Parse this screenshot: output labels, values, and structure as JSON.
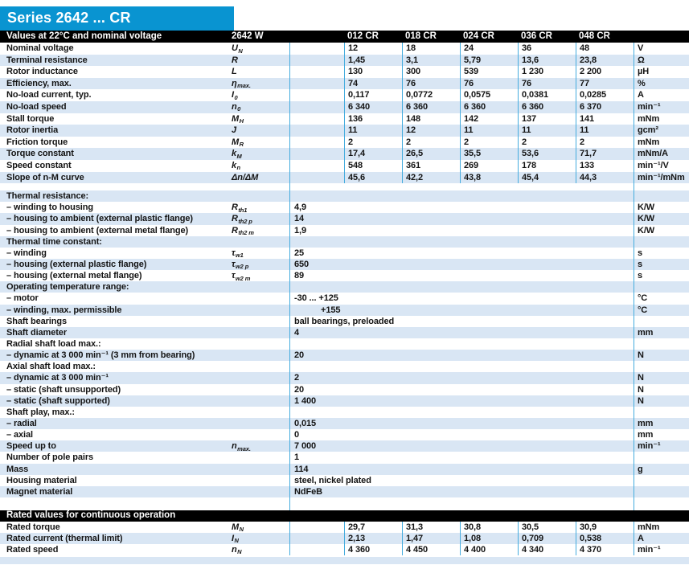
{
  "title": "Series 2642 ... CR",
  "colors": {
    "accent_blue": "#0994d1",
    "row_stripe_blue": "#d9e6f4",
    "divider_cyan": "#45acde",
    "header_bar": "#000000"
  },
  "header": {
    "label": "Values at 22°C and nominal voltage",
    "model": "2642 W",
    "columns": [
      "012 CR",
      "018 CR",
      "024 CR",
      "036 CR",
      "048 CR"
    ]
  },
  "top_rows": [
    {
      "label": "Nominal voltage",
      "sym": "U",
      "sub": "N",
      "values": [
        "12",
        "18",
        "24",
        "36",
        "48"
      ],
      "unit": "V"
    },
    {
      "label": "Terminal resistance",
      "sym": "R",
      "values": [
        "1,45",
        "3,1",
        "5,79",
        "13,6",
        "23,8"
      ],
      "unit": "Ω"
    },
    {
      "label": "Rotor inductance",
      "sym": "L",
      "values": [
        "130",
        "300",
        "539",
        "1 230",
        "2 200"
      ],
      "unit": "µH"
    },
    {
      "label": "Efficiency, max.",
      "sym": "η",
      "sub": "max.",
      "values": [
        "74",
        "76",
        "76",
        "76",
        "77"
      ],
      "unit": "%"
    },
    {
      "label": "No-load current, typ.",
      "sym": "I",
      "sub": "0",
      "values": [
        "0,117",
        "0,0772",
        "0,0575",
        "0,0381",
        "0,0285"
      ],
      "unit": "A"
    },
    {
      "label": "No-load speed",
      "sym": "n",
      "sub": "0",
      "values": [
        "6 340",
        "6 360",
        "6 360",
        "6 360",
        "6 370"
      ],
      "unit": "min⁻¹"
    },
    {
      "label": "Stall torque",
      "sym": "M",
      "sub": "H",
      "values": [
        "136",
        "148",
        "142",
        "137",
        "141"
      ],
      "unit": "mNm"
    },
    {
      "label": "Rotor inertia",
      "sym": "J",
      "values": [
        "11",
        "12",
        "11",
        "11",
        "11"
      ],
      "unit": "gcm²"
    },
    {
      "label": "Friction torque",
      "sym": "M",
      "sub": "R",
      "values": [
        "2",
        "2",
        "2",
        "2",
        "2"
      ],
      "unit": "mNm"
    },
    {
      "label": "Torque constant",
      "sym": "k",
      "sub": "M",
      "values": [
        "17,4",
        "26,5",
        "35,5",
        "53,6",
        "71,7"
      ],
      "unit": "mNm/A"
    },
    {
      "label": "Speed constant",
      "sym": "k",
      "sub": "n",
      "values": [
        "548",
        "361",
        "269",
        "178",
        "133"
      ],
      "unit": "min⁻¹/V"
    },
    {
      "label": "Slope of n-M curve",
      "sym": "Δn/ΔM",
      "values": [
        "45,6",
        "42,2",
        "43,8",
        "45,4",
        "44,3"
      ],
      "unit": "min⁻¹/mNm"
    }
  ],
  "mid_rows": [
    {
      "label": "Thermal resistance:"
    },
    {
      "label": "– winding to housing",
      "sym": "R",
      "sub": "th1",
      "value": "4,9",
      "unit": "K/W"
    },
    {
      "label": "– housing to ambient (external plastic flange)",
      "sym": "R",
      "sub": "th2 p",
      "value": "14",
      "unit": "K/W"
    },
    {
      "label": "– housing to ambient (external metal flange)",
      "sym": "R",
      "sub": "th2 m",
      "value": "1,9",
      "unit": "K/W"
    },
    {
      "label": "Thermal time constant:"
    },
    {
      "label": "– winding",
      "sym": "τ",
      "sub": "w1",
      "value": "25",
      "unit": "s"
    },
    {
      "label": "– housing (external plastic flange)",
      "sym": "τ",
      "sub": "w2 p",
      "value": "650",
      "unit": "s"
    },
    {
      "label": "– housing (external metal flange)",
      "sym": "τ",
      "sub": "w2 m",
      "value": "89",
      "unit": "s"
    },
    {
      "label": "Operating temperature range:"
    },
    {
      "label": "– motor",
      "value": "-30 ... +125",
      "unit": "°C"
    },
    {
      "label": "– winding, max. permissible",
      "value": "+155",
      "unit": "°C",
      "indent": true
    },
    {
      "label": "Shaft bearings",
      "value": "ball bearings, preloaded"
    },
    {
      "label": "Shaft diameter",
      "value": "4",
      "unit": "mm"
    },
    {
      "label": "Radial shaft load max.:"
    },
    {
      "label": "– dynamic at 3 000 min⁻¹ (3 mm from bearing)",
      "value": "20",
      "unit": "N"
    },
    {
      "label": "Axial shaft load max.:"
    },
    {
      "label": "– dynamic at 3 000 min⁻¹",
      "value": "2",
      "unit": "N"
    },
    {
      "label": "– static (shaft unsupported)",
      "value": "20",
      "unit": "N"
    },
    {
      "label": "– static (shaft supported)",
      "value": "1 400",
      "unit": "N"
    },
    {
      "label": "Shaft play, max.:"
    },
    {
      "label": "– radial",
      "value": "0,015",
      "unit": "mm"
    },
    {
      "label": "– axial",
      "value": "0",
      "unit": "mm"
    },
    {
      "label": "Speed up to",
      "sym": "n",
      "sub": "max.",
      "value": "7 000",
      "unit": "min⁻¹"
    },
    {
      "label": "Number of pole pairs",
      "value": "1"
    },
    {
      "label": "Mass",
      "value": "114",
      "unit": "g"
    },
    {
      "label": "Housing material",
      "value": "steel, nickel plated"
    },
    {
      "label": "Magnet material",
      "value": "NdFeB"
    }
  ],
  "rated": {
    "header": "Rated values for continuous operation",
    "rows": [
      {
        "label": "Rated torque",
        "sym": "M",
        "sub": "N",
        "values": [
          "29,7",
          "31,3",
          "30,8",
          "30,5",
          "30,9"
        ],
        "unit": "mNm"
      },
      {
        "label": "Rated current (thermal limit)",
        "sym": "I",
        "sub": "N",
        "values": [
          "2,13",
          "1,47",
          "1,08",
          "0,709",
          "0,538"
        ],
        "unit": "A"
      },
      {
        "label": "Rated speed",
        "sym": "n",
        "sub": "N",
        "values": [
          "4 360",
          "4 450",
          "4 400",
          "4 340",
          "4 370"
        ],
        "unit": "min⁻¹"
      }
    ]
  }
}
